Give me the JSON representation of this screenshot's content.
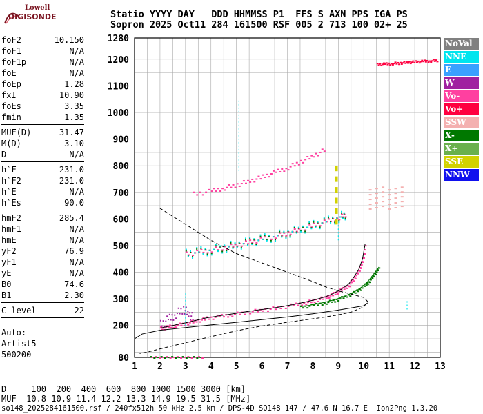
{
  "logo": {
    "line1": "Lowell",
    "line2": "DIGISONDE"
  },
  "header": {
    "line1": "Statio YYYY DAY   DDD HHMMSS P1  FFS S AXN PPS IGA PS",
    "line2": "Sopron 2025 Oct11 284 161500 RSF 005 2 713 100 02+ 25"
  },
  "params": [
    {
      "k": "foF2",
      "v": "10.150"
    },
    {
      "k": "foF1",
      "v": "N/A"
    },
    {
      "k": "foF1p",
      "v": "N/A"
    },
    {
      "k": "foE",
      "v": "N/A"
    },
    {
      "k": "foEp",
      "v": "1.28"
    },
    {
      "k": "fxI",
      "v": "10.90"
    },
    {
      "k": "foEs",
      "v": "3.35"
    },
    {
      "k": "fmin",
      "v": "1.35"
    },
    {
      "sep": true
    },
    {
      "k": "MUF(D)",
      "v": "31.47"
    },
    {
      "k": "M(D)",
      "v": "3.10"
    },
    {
      "k": "D",
      "v": "N/A"
    },
    {
      "sep": true
    },
    {
      "k": "h`F",
      "v": "231.0"
    },
    {
      "k": "h`F2",
      "v": "231.0"
    },
    {
      "k": "h`E",
      "v": "N/A"
    },
    {
      "k": "h`Es",
      "v": "90.0"
    },
    {
      "sep": true
    },
    {
      "k": "hmF2",
      "v": "285.4"
    },
    {
      "k": "hmF1",
      "v": "N/A"
    },
    {
      "k": "hmE",
      "v": "N/A"
    },
    {
      "k": "yF2",
      "v": "76.9"
    },
    {
      "k": "yF1",
      "v": "N/A"
    },
    {
      "k": "yE",
      "v": "N/A"
    },
    {
      "k": "B0",
      "v": "74.6"
    },
    {
      "k": "B1",
      "v": "2.30"
    },
    {
      "sep": true
    },
    {
      "k": "C-level",
      "v": "22"
    },
    {
      "sep": true
    }
  ],
  "auto": {
    "l1": "Auto:",
    "l2": "Artist5",
    "l3": "500200"
  },
  "dmuf": {
    "d_row": "D     100  200  400  600  800 1000 1500 3000 [km]",
    "muf_row": "MUF  10.8 10.9 11.4 12.2 13.3 14.9 19.5 31.5 [MHz]"
  },
  "footer": "so148_2025284161500.rsf / 240fx512h 50 kHz 2.5 km / DPS-4D SO148 147 / 47.6 N 16.7 E  Ion2Png 1.3.20",
  "legend": [
    {
      "label": "NoVal",
      "color": "#808080"
    },
    {
      "label": "NNE",
      "color": "#00e5ee"
    },
    {
      "label": "E",
      "color": "#3aa0ff"
    },
    {
      "label": "W",
      "color": "#a020a0"
    },
    {
      "label": "Vo-",
      "color": "#ff40a0"
    },
    {
      "label": "Vo+",
      "color": "#ff0040"
    },
    {
      "label": "SSW",
      "color": "#f4b0b0"
    },
    {
      "label": "X-",
      "color": "#007800"
    },
    {
      "label": "X+",
      "color": "#6ab04c"
    },
    {
      "label": "SSE",
      "color": "#d2d200"
    },
    {
      "label": "NNW",
      "color": "#1010ee"
    }
  ],
  "chart_data": {
    "type": "scatter",
    "title": "",
    "xlabel": "",
    "ylabel": "",
    "xlim": [
      1,
      13
    ],
    "ylim": [
      80,
      1280
    ],
    "x_ticks": [
      1,
      2,
      3,
      4,
      5,
      6,
      7,
      8,
      9,
      10,
      11,
      12,
      13
    ],
    "y_ticks": [
      80,
      200,
      300,
      400,
      500,
      600,
      700,
      800,
      900,
      1000,
      1100,
      1200,
      1280
    ],
    "grid": true,
    "colors": {
      "vo_minus": "#ff40a0",
      "x_minus": "#007800",
      "nne": "#00e5ee",
      "vo_plus": "#ff0040",
      "sse": "#d2d200",
      "ssw": "#f4b0b0",
      "w": "#a020a0"
    },
    "series": [
      {
        "x": [
          2.0,
          2.3,
          2.6,
          3.0,
          3.4,
          3.8,
          4.3,
          4.8,
          5.4,
          6.0,
          6.6,
          7.2,
          7.7,
          8.1,
          8.5,
          8.8,
          9.1,
          9.4,
          9.6,
          9.8,
          9.95,
          10.05
        ],
        "y": [
          190,
          196,
          202,
          210,
          219,
          228,
          236,
          243,
          252,
          260,
          268,
          278,
          288,
          297,
          308,
          320,
          335,
          355,
          380,
          410,
          450,
          505
        ]
      },
      {
        "x": [
          7.5,
          8.0,
          8.5,
          8.9,
          9.3,
          9.7,
          10.0,
          10.2,
          10.4,
          10.6
        ],
        "y": [
          270,
          278,
          288,
          298,
          312,
          330,
          350,
          370,
          395,
          420
        ]
      },
      {
        "x": [
          2.0,
          3.0,
          4.0,
          5.0,
          6.0,
          7.0,
          8.0,
          8.5,
          9.0,
          9.5,
          10.0,
          10.15,
          10.0,
          9.5,
          9.0,
          8.5,
          8.0,
          7.0,
          6.0,
          5.0,
          4.0,
          3.0,
          2.0,
          1.5,
          1.2
        ],
        "y": [
          640,
          580,
          520,
          470,
          435,
          400,
          365,
          345,
          330,
          318,
          305,
          290,
          270,
          250,
          240,
          232,
          225,
          212,
          198,
          180,
          158,
          135,
          112,
          100,
          95
        ]
      },
      {
        "x": [
          1.0,
          1.3,
          2.0,
          3.0,
          4.0,
          5.0,
          6.0,
          7.0,
          8.0,
          9.0,
          10.0,
          10.15
        ],
        "y": [
          150,
          168,
          182,
          192,
          202,
          212,
          222,
          232,
          244,
          258,
          274,
          285
        ]
      },
      {
        "x": [
          3.0,
          3.5,
          4.0,
          4.5,
          5.0,
          5.5,
          6.0,
          6.5,
          7.0,
          7.5,
          8.0,
          8.5,
          9.0,
          9.3
        ],
        "y": [
          470,
          478,
          486,
          495,
          505,
          515,
          526,
          538,
          550,
          564,
          578,
          592,
          608,
          620
        ]
      },
      {
        "x": [
          3.3,
          4.0,
          4.5,
          5.0,
          5.5,
          6.0,
          6.5,
          7.0,
          7.5,
          8.0,
          8.5
        ],
        "y": [
          695,
          707,
          719,
          731,
          745,
          760,
          778,
          795,
          818,
          840,
          865
        ]
      },
      {
        "x": [
          10.5,
          10.8,
          11.1,
          11.4,
          11.7,
          12.0,
          12.3,
          12.6,
          12.9
        ],
        "y": [
          1182,
          1184,
          1186,
          1188,
          1190,
          1192,
          1194,
          1196,
          1198
        ]
      },
      {
        "x": [
          8.9,
          8.9,
          8.9,
          8.9,
          8.9,
          8.9
        ],
        "y": [
          600,
          640,
          680,
          720,
          760,
          800
        ]
      },
      {
        "x": [
          2.0,
          2.3,
          2.6,
          2.9,
          3.1,
          3.3
        ],
        "y": [
          205,
          225,
          245,
          265,
          245,
          230
        ]
      }
    ]
  }
}
